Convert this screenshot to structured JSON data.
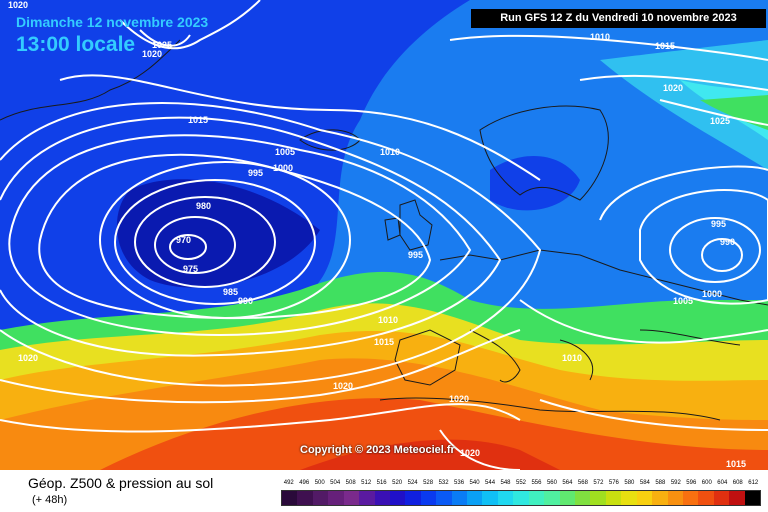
{
  "header": {
    "date_line": "Dimanche 12 novembre 2023",
    "time_line": "13:00 locale"
  },
  "run_info": "Run GFS 12 Z du Vendredi 10 novembre 2023",
  "copyright": "Copyright © 2023 Meteociel.fr",
  "legend": {
    "title": "Géop. Z500 & pression au sol",
    "subtitle": "(+ 48h)",
    "scale_values": [
      "492",
      "496",
      "500",
      "504",
      "508",
      "512",
      "516",
      "520",
      "524",
      "528",
      "532",
      "536",
      "540",
      "544",
      "548",
      "552",
      "556",
      "560",
      "564",
      "568",
      "572",
      "576",
      "580",
      "584",
      "588",
      "592",
      "596",
      "600",
      "604",
      "608",
      "612"
    ],
    "scale_colors": [
      "#2a0a3a",
      "#3f1050",
      "#521a66",
      "#66207a",
      "#7a2a8c",
      "#5a1aa0",
      "#3a10b4",
      "#2010c8",
      "#1020e0",
      "#0a3af0",
      "#0a5af5",
      "#0a7cf5",
      "#0aa0f5",
      "#10c0f5",
      "#20d8f0",
      "#30e8e0",
      "#40f0c0",
      "#50f0a0",
      "#60e870",
      "#80e040",
      "#a0e020",
      "#c8e010",
      "#e8e010",
      "#f8d010",
      "#f8b010",
      "#f89010",
      "#f87010",
      "#f05010",
      "#e03010",
      "#c01010",
      "#000000"
    ]
  },
  "pressure_labels": [
    "1020",
    "1025",
    "1020",
    "1015",
    "1010",
    "1015",
    "1005",
    "1000",
    "995",
    "1010",
    "1020",
    "1025",
    "980",
    "970",
    "975",
    "985",
    "990",
    "995",
    "995",
    "990",
    "1000",
    "1005",
    "1010",
    "1015",
    "1020",
    "1010",
    "1020",
    "1020",
    "1020",
    "1015"
  ],
  "map_colors": {
    "purple": "#5a1a6e",
    "deep_blue": "#0a1ab0",
    "blue": "#1040e8",
    "mid_blue": "#1a7cf0",
    "light_blue": "#30c0f0",
    "cyan": "#40e8f0",
    "green": "#40e060",
    "yellow": "#e8e020",
    "orange": "#f88a10",
    "red_orange": "#f05010",
    "coast": "#1a1a1a",
    "isobar": "#ffffff"
  }
}
